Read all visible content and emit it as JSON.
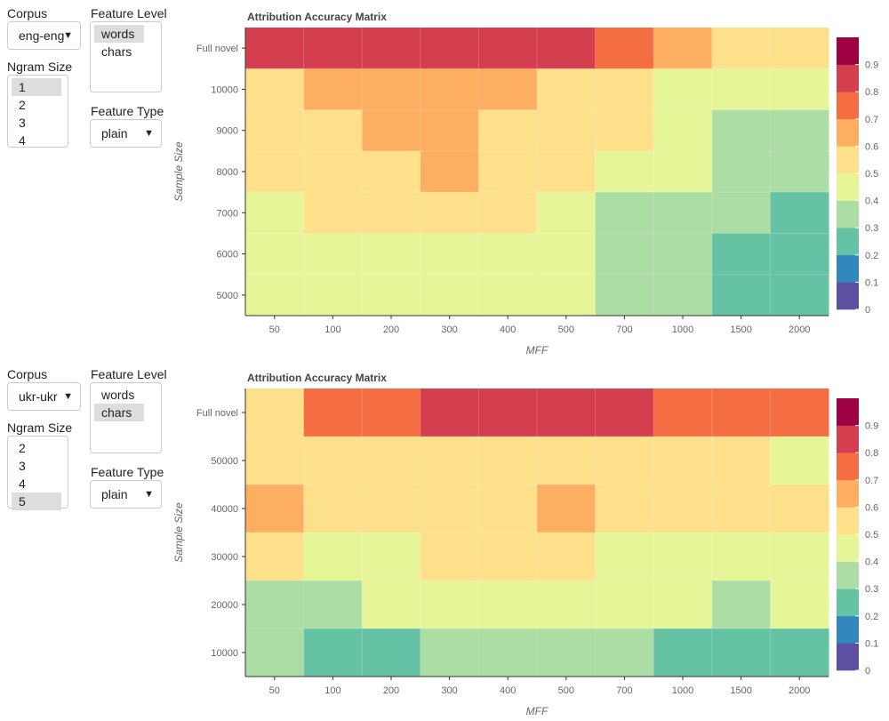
{
  "colors": [
    "#5e4fa2",
    "#3288bd",
    "#66c2a5",
    "#abdda4",
    "#e6f598",
    "#fee08b",
    "#fdae61",
    "#f46d43",
    "#d53e4f",
    "#9e0142"
  ],
  "legend_ticks": [
    "0",
    "0.1",
    "0.2",
    "0.3",
    "0.4",
    "0.5",
    "0.6",
    "0.7",
    "0.8",
    "0.9"
  ],
  "panels": [
    {
      "controls": {
        "corpus_label": "Corpus",
        "corpus_value": "eng-eng",
        "ngram_label": "Ngram Size",
        "ngram_options": [
          "1",
          "2",
          "3",
          "4"
        ],
        "ngram_selected": 0,
        "level_label": "Feature Level",
        "level_options": [
          "words",
          "chars"
        ],
        "level_selected": 0,
        "type_label": "Feature Type",
        "type_value": "plain"
      }
    },
    {
      "controls": {
        "corpus_label": "Corpus",
        "corpus_value": "ukr-ukr",
        "ngram_label": "Ngram Size",
        "ngram_options": [
          "2",
          "3",
          "4",
          "5"
        ],
        "ngram_selected": 3,
        "level_label": "Feature Level",
        "level_options": [
          "words",
          "chars"
        ],
        "level_selected": 1,
        "type_label": "Feature Type",
        "type_value": "plain"
      }
    }
  ],
  "chart_data": [
    {
      "type": "heatmap",
      "title": "Attribution Accuracy Matrix",
      "xlabel": "MFF",
      "ylabel": "Sample Size",
      "x": [
        "50",
        "100",
        "200",
        "300",
        "400",
        "500",
        "700",
        "1000",
        "1500",
        "2000"
      ],
      "y": [
        "Full novel",
        "10000",
        "9000",
        "8000",
        "7000",
        "6000",
        "5000"
      ],
      "zlim": [
        0,
        1
      ],
      "values": [
        [
          0.85,
          0.85,
          0.85,
          0.85,
          0.85,
          0.85,
          0.75,
          0.65,
          0.55,
          0.55
        ],
        [
          0.55,
          0.65,
          0.65,
          0.65,
          0.65,
          0.55,
          0.55,
          0.45,
          0.45,
          0.45
        ],
        [
          0.55,
          0.55,
          0.65,
          0.65,
          0.55,
          0.55,
          0.55,
          0.45,
          0.35,
          0.35
        ],
        [
          0.55,
          0.55,
          0.55,
          0.65,
          0.55,
          0.55,
          0.45,
          0.45,
          0.35,
          0.35
        ],
        [
          0.45,
          0.55,
          0.55,
          0.55,
          0.55,
          0.45,
          0.35,
          0.35,
          0.35,
          0.25
        ],
        [
          0.45,
          0.45,
          0.45,
          0.45,
          0.45,
          0.45,
          0.35,
          0.35,
          0.25,
          0.25
        ],
        [
          0.45,
          0.45,
          0.45,
          0.45,
          0.45,
          0.45,
          0.35,
          0.35,
          0.25,
          0.25
        ]
      ]
    },
    {
      "type": "heatmap",
      "title": "Attribution Accuracy Matrix",
      "xlabel": "MFF",
      "ylabel": "Sample Size",
      "x": [
        "50",
        "100",
        "200",
        "300",
        "400",
        "500",
        "700",
        "1000",
        "1500",
        "2000"
      ],
      "y": [
        "Full novel",
        "50000",
        "40000",
        "30000",
        "20000",
        "10000"
      ],
      "zlim": [
        0,
        1
      ],
      "values": [
        [
          0.55,
          0.75,
          0.75,
          0.85,
          0.85,
          0.85,
          0.85,
          0.75,
          0.75,
          0.75
        ],
        [
          0.55,
          0.55,
          0.55,
          0.55,
          0.55,
          0.55,
          0.55,
          0.55,
          0.55,
          0.45
        ],
        [
          0.65,
          0.55,
          0.55,
          0.55,
          0.55,
          0.65,
          0.55,
          0.55,
          0.55,
          0.55
        ],
        [
          0.55,
          0.45,
          0.45,
          0.55,
          0.55,
          0.55,
          0.45,
          0.45,
          0.45,
          0.45
        ],
        [
          0.35,
          0.35,
          0.45,
          0.45,
          0.45,
          0.45,
          0.45,
          0.45,
          0.35,
          0.45
        ],
        [
          0.35,
          0.25,
          0.25,
          0.35,
          0.35,
          0.35,
          0.35,
          0.25,
          0.25,
          0.25
        ]
      ]
    }
  ]
}
